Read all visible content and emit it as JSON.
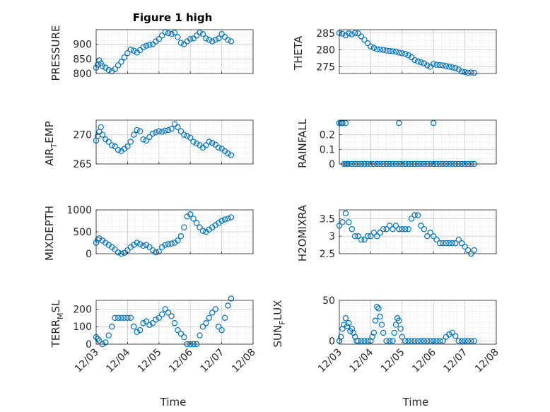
{
  "figure_title": "Figure 1 high",
  "marker_color": "#0072BD",
  "x_tick_labels": [
    "12/03",
    "12/04",
    "12/05",
    "12/06",
    "12/07",
    "12/08"
  ],
  "x_range": [
    "12/03",
    "12/08"
  ],
  "grid": true,
  "chart_data": [
    {
      "type": "scatter",
      "title": "Figure 1 high",
      "ylabel": "PRESSURE",
      "xlabel": "",
      "ylim": [
        800,
        950
      ],
      "yticks": [
        800,
        850,
        900
      ],
      "xlim": [
        0,
        5
      ],
      "series": [
        {
          "x": [
            0,
            0.05,
            0.1,
            0.15,
            0.2,
            0.3,
            0.4,
            0.5,
            0.6,
            0.7,
            0.8,
            0.9,
            1.0,
            1.1,
            1.2,
            1.3,
            1.4,
            1.5,
            1.6,
            1.7,
            1.8,
            1.9,
            2.0,
            2.1,
            2.2,
            2.3,
            2.4,
            2.5,
            2.6,
            2.7,
            2.8,
            2.9,
            3.0,
            3.1,
            3.2,
            3.3,
            3.4,
            3.5,
            3.6,
            3.7,
            3.8,
            3.9,
            4.0,
            4.1,
            4.2,
            4.3
          ],
          "y": [
            820,
            830,
            845,
            835,
            825,
            820,
            812,
            808,
            815,
            828,
            840,
            855,
            870,
            882,
            878,
            872,
            880,
            890,
            895,
            898,
            900,
            910,
            918,
            930,
            942,
            938,
            935,
            940,
            925,
            905,
            900,
            910,
            918,
            920,
            930,
            940,
            935,
            920,
            915,
            910,
            915,
            920,
            935,
            925,
            915,
            910
          ]
        }
      ]
    },
    {
      "type": "scatter",
      "ylabel": "THETA",
      "xlabel": "",
      "ylim": [
        273,
        286
      ],
      "yticks": [
        275,
        280,
        285
      ],
      "xlim": [
        0,
        5
      ],
      "series": [
        {
          "x": [
            0,
            0.1,
            0.2,
            0.3,
            0.4,
            0.5,
            0.6,
            0.7,
            0.8,
            0.9,
            1.0,
            1.1,
            1.2,
            1.3,
            1.4,
            1.5,
            1.6,
            1.7,
            1.8,
            1.9,
            2.0,
            2.1,
            2.2,
            2.3,
            2.4,
            2.5,
            2.6,
            2.7,
            2.8,
            2.9,
            3.0,
            3.1,
            3.2,
            3.3,
            3.4,
            3.5,
            3.6,
            3.7,
            3.8,
            3.9,
            4.0,
            4.1,
            4.2,
            4.3
          ],
          "y": [
            285,
            284.8,
            284.3,
            284.9,
            284.6,
            285,
            284.9,
            284,
            283,
            282,
            281,
            280.6,
            280.2,
            280.1,
            280,
            279.8,
            279.7,
            279.6,
            279.5,
            279.2,
            279,
            278.8,
            278.4,
            277.8,
            277,
            276.6,
            276.3,
            276,
            275.4,
            275,
            275.8,
            275.6,
            275.5,
            275.4,
            275.2,
            275,
            274.8,
            274.6,
            274.2,
            273.6,
            273.4,
            273.2,
            273.3,
            273.2
          ]
        }
      ]
    },
    {
      "type": "scatter",
      "ylabel": "AIR_TEMP",
      "xlabel": "",
      "ylim": [
        265,
        272.5
      ],
      "yticks": [
        265,
        270
      ],
      "xlim": [
        0,
        5
      ],
      "series": [
        {
          "x": [
            0,
            0.05,
            0.1,
            0.15,
            0.2,
            0.3,
            0.4,
            0.5,
            0.6,
            0.7,
            0.8,
            0.9,
            1.0,
            1.1,
            1.2,
            1.3,
            1.4,
            1.5,
            1.6,
            1.7,
            1.8,
            1.9,
            2.0,
            2.1,
            2.2,
            2.3,
            2.4,
            2.5,
            2.6,
            2.7,
            2.8,
            2.9,
            3.0,
            3.1,
            3.2,
            3.3,
            3.4,
            3.5,
            3.6,
            3.7,
            3.8,
            3.9,
            4.0,
            4.1,
            4.2,
            4.3
          ],
          "y": [
            269,
            269.8,
            270.5,
            271.3,
            270,
            269.2,
            268.8,
            268.2,
            268,
            267.4,
            267.2,
            267.6,
            268,
            268.8,
            270,
            270.8,
            270.6,
            269.2,
            269,
            269.6,
            270.2,
            270.4,
            270.6,
            270.5,
            270.7,
            270.8,
            271,
            271.8,
            271.3,
            270.6,
            270,
            269.8,
            269.5,
            268.8,
            268.5,
            268.2,
            267.8,
            268.2,
            268.8,
            268.6,
            268.3,
            267.8,
            267.6,
            267.2,
            266.8,
            266.5
          ]
        }
      ]
    },
    {
      "type": "scatter",
      "ylabel": "RAINFALL",
      "xlabel": "",
      "ylim": [
        0,
        0.3
      ],
      "yticks": [
        0,
        0.1,
        0.2
      ],
      "xlim": [
        0,
        5
      ],
      "series": [
        {
          "x": [
            0,
            0.05,
            0.1,
            0.15,
            0.2,
            0.25,
            0.3,
            0.4,
            0.5,
            0.6,
            0.7,
            0.8,
            0.9,
            1.0,
            1.1,
            1.2,
            1.3,
            1.4,
            1.5,
            1.6,
            1.7,
            1.8,
            1.9,
            2.0,
            2.1,
            2.2,
            2.3,
            2.4,
            2.5,
            2.6,
            2.7,
            2.8,
            2.9,
            3.0,
            3.1,
            3.2,
            3.3,
            3.4,
            3.5,
            3.6,
            3.7,
            3.8,
            3.9,
            4.0,
            4.1,
            4.2,
            4.3,
            0,
            0.1,
            0.2,
            1.9,
            3.0
          ],
          "y": [
            0.28,
            0.28,
            0.28,
            0,
            0,
            0,
            0,
            0,
            0,
            0,
            0,
            0,
            0,
            0,
            0,
            0,
            0,
            0,
            0,
            0,
            0,
            0,
            0,
            0,
            0,
            0,
            0,
            0,
            0,
            0,
            0,
            0,
            0,
            0,
            0,
            0,
            0,
            0,
            0,
            0,
            0,
            0,
            0,
            0,
            0,
            0,
            0,
            0.28,
            0.28,
            0.28,
            0.28,
            0.28
          ]
        }
      ]
    },
    {
      "type": "scatter",
      "ylabel": "MIXDEPTH",
      "xlabel": "",
      "ylim": [
        0,
        1000
      ],
      "yticks": [
        0,
        500,
        1000
      ],
      "xlim": [
        0,
        5
      ],
      "series": [
        {
          "x": [
            0,
            0.05,
            0.1,
            0.2,
            0.3,
            0.4,
            0.5,
            0.6,
            0.7,
            0.8,
            0.9,
            1.0,
            1.1,
            1.2,
            1.3,
            1.4,
            1.5,
            1.6,
            1.7,
            1.8,
            1.9,
            2.0,
            2.1,
            2.2,
            2.3,
            2.4,
            2.5,
            2.6,
            2.7,
            2.8,
            2.9,
            3.0,
            3.1,
            3.2,
            3.3,
            3.4,
            3.5,
            3.6,
            3.7,
            3.8,
            3.9,
            4.0,
            4.1,
            4.2,
            4.3
          ],
          "y": [
            250,
            320,
            350,
            300,
            250,
            200,
            150,
            100,
            30,
            0,
            20,
            80,
            150,
            200,
            250,
            220,
            180,
            200,
            150,
            80,
            30,
            50,
            150,
            200,
            220,
            230,
            250,
            300,
            400,
            600,
            850,
            900,
            800,
            700,
            600,
            520,
            500,
            550,
            600,
            650,
            700,
            750,
            780,
            800,
            830
          ]
        }
      ]
    },
    {
      "type": "scatter",
      "ylabel": "H2OMIXRA",
      "xlabel": "",
      "ylim": [
        2.5,
        3.75
      ],
      "yticks": [
        2.5,
        3,
        3.5
      ],
      "xlim": [
        0,
        5
      ],
      "series": [
        {
          "x": [
            0,
            0.1,
            0.2,
            0.3,
            0.4,
            0.5,
            0.6,
            0.7,
            0.8,
            0.9,
            1.0,
            1.1,
            1.2,
            1.3,
            1.4,
            1.5,
            1.6,
            1.7,
            1.8,
            1.9,
            2.0,
            2.1,
            2.2,
            2.3,
            2.4,
            2.5,
            2.6,
            2.7,
            2.8,
            2.9,
            3.0,
            3.1,
            3.2,
            3.3,
            3.4,
            3.5,
            3.6,
            3.7,
            3.8,
            3.9,
            4.0,
            4.1,
            4.2,
            4.3
          ],
          "y": [
            3.3,
            3.4,
            3.65,
            3.4,
            3.2,
            3.0,
            3.0,
            2.9,
            2.9,
            3.0,
            3.0,
            3.1,
            3.0,
            3.1,
            3.2,
            3.2,
            3.3,
            3.2,
            3.3,
            3.2,
            3.2,
            3.2,
            3.2,
            3.5,
            3.6,
            3.6,
            3.3,
            3.2,
            3.0,
            3.1,
            3.0,
            2.9,
            2.8,
            2.8,
            2.8,
            2.8,
            2.8,
            2.8,
            2.9,
            2.8,
            2.7,
            2.6,
            2.5,
            2.6
          ]
        }
      ]
    },
    {
      "type": "scatter",
      "ylabel": "TERR_MSL",
      "xlabel": "Time",
      "ylim": [
        0,
        250
      ],
      "yticks": [
        0,
        100,
        200
      ],
      "xlim": [
        0,
        5
      ],
      "series": [
        {
          "x": [
            0,
            0.05,
            0.1,
            0.2,
            0.3,
            0.4,
            0.5,
            0.6,
            0.7,
            0.8,
            0.9,
            1.0,
            1.1,
            1.2,
            1.3,
            1.4,
            1.5,
            1.6,
            1.7,
            1.8,
            1.9,
            2.0,
            2.1,
            2.2,
            2.3,
            2.4,
            2.5,
            2.6,
            2.7,
            2.8,
            2.9,
            3.0,
            3.1,
            3.2,
            3.3,
            3.4,
            3.5,
            3.6,
            3.7,
            3.8,
            3.9,
            4.0,
            4.1,
            4.2,
            4.3
          ],
          "y": [
            40,
            30,
            20,
            0,
            10,
            50,
            100,
            150,
            150,
            150,
            150,
            150,
            150,
            100,
            70,
            80,
            120,
            130,
            110,
            120,
            140,
            150,
            170,
            200,
            180,
            160,
            120,
            80,
            60,
            40,
            0,
            0,
            0,
            0,
            50,
            100,
            120,
            150,
            180,
            200,
            100,
            80,
            150,
            220,
            260
          ]
        }
      ]
    },
    {
      "type": "scatter",
      "ylabel": "SUN_FLUX",
      "xlabel": "Time",
      "ylim": [
        -4,
        50
      ],
      "yticks": [
        0,
        50
      ],
      "xlim": [
        0,
        5
      ],
      "series": [
        {
          "x": [
            0,
            0.05,
            0.1,
            0.15,
            0.2,
            0.25,
            0.3,
            0.35,
            0.4,
            0.45,
            0.5,
            0.55,
            0.6,
            0.7,
            0.8,
            0.9,
            1.0,
            1.05,
            1.1,
            1.15,
            1.2,
            1.25,
            1.3,
            1.35,
            1.4,
            1.5,
            1.6,
            1.7,
            1.75,
            1.8,
            1.85,
            1.9,
            1.95,
            2.0,
            2.1,
            2.2,
            2.3,
            2.4,
            2.5,
            2.6,
            2.7,
            2.8,
            2.9,
            3.0,
            3.1,
            3.2,
            3.3,
            3.4,
            3.5,
            3.6,
            3.7,
            3.8,
            3.9,
            4.0,
            4.1,
            4.2,
            4.3
          ],
          "y": [
            0,
            5,
            15,
            20,
            28,
            18,
            22,
            12,
            15,
            10,
            5,
            0,
            0,
            0,
            0,
            0,
            0,
            5,
            10,
            25,
            42,
            40,
            30,
            20,
            10,
            0,
            0,
            0,
            10,
            20,
            28,
            25,
            15,
            5,
            0,
            0,
            0,
            0,
            0,
            0,
            0,
            0,
            0,
            0,
            0,
            0,
            0,
            5,
            8,
            10,
            6,
            0,
            0,
            0,
            0,
            0,
            0
          ]
        }
      ]
    }
  ]
}
